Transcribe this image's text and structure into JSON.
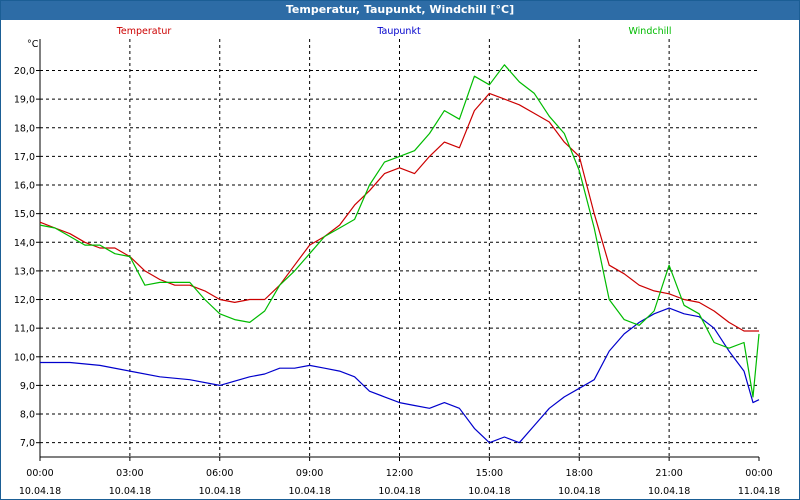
{
  "window": {
    "title": "Temperatur, Taupunkt, Windchill [°C]"
  },
  "chart_data": {
    "type": "line",
    "title": "Temperatur, Taupunkt, Windchill [°C]",
    "ylabel": "°C",
    "xlabel": "",
    "ylim": [
      6.5,
      21.1
    ],
    "xlim": [
      0,
      24
    ],
    "grid": true,
    "legend_position": "top",
    "y_ticks": [
      "7,0",
      "8,0",
      "9,0",
      "10,0",
      "11,0",
      "12,0",
      "13,0",
      "14,0",
      "15,0",
      "16,0",
      "17,0",
      "18,0",
      "19,0",
      "20,0"
    ],
    "y_tick_values": [
      7,
      8,
      9,
      10,
      11,
      12,
      13,
      14,
      15,
      16,
      17,
      18,
      19,
      20
    ],
    "x_ticks": [
      {
        "time": "00:00",
        "date": "10.04.18",
        "hour": 0
      },
      {
        "time": "03:00",
        "date": "10.04.18",
        "hour": 3
      },
      {
        "time": "06:00",
        "date": "10.04.18",
        "hour": 6
      },
      {
        "time": "09:00",
        "date": "10.04.18",
        "hour": 9
      },
      {
        "time": "12:00",
        "date": "10.04.18",
        "hour": 12
      },
      {
        "time": "15:00",
        "date": "10.04.18",
        "hour": 15
      },
      {
        "time": "18:00",
        "date": "10.04.18",
        "hour": 18
      },
      {
        "time": "21:00",
        "date": "10.04.18",
        "hour": 21
      },
      {
        "time": "00:00",
        "date": "11.04.18",
        "hour": 24
      }
    ],
    "series": [
      {
        "name": "Temperatur",
        "color": "#cc0000",
        "points": [
          [
            0,
            14.7
          ],
          [
            0.5,
            14.5
          ],
          [
            1,
            14.3
          ],
          [
            1.5,
            14.0
          ],
          [
            2,
            13.8
          ],
          [
            2.5,
            13.8
          ],
          [
            3,
            13.5
          ],
          [
            3.5,
            13.0
          ],
          [
            4,
            12.7
          ],
          [
            4.5,
            12.5
          ],
          [
            5,
            12.5
          ],
          [
            5.5,
            12.3
          ],
          [
            6,
            12.0
          ],
          [
            6.5,
            11.9
          ],
          [
            7,
            12.0
          ],
          [
            7.5,
            12.0
          ],
          [
            8,
            12.5
          ],
          [
            8.5,
            13.2
          ],
          [
            9,
            13.9
          ],
          [
            9.5,
            14.2
          ],
          [
            10,
            14.6
          ],
          [
            10.5,
            15.3
          ],
          [
            11,
            15.8
          ],
          [
            11.5,
            16.4
          ],
          [
            12,
            16.6
          ],
          [
            12.5,
            16.4
          ],
          [
            13,
            17.0
          ],
          [
            13.5,
            17.5
          ],
          [
            14,
            17.3
          ],
          [
            14.5,
            18.6
          ],
          [
            15,
            19.2
          ],
          [
            15.5,
            19.0
          ],
          [
            16,
            18.8
          ],
          [
            16.5,
            18.5
          ],
          [
            17,
            18.2
          ],
          [
            17.5,
            17.5
          ],
          [
            18,
            17.0
          ],
          [
            18.5,
            15.0
          ],
          [
            19,
            13.2
          ],
          [
            19.5,
            12.9
          ],
          [
            20,
            12.5
          ],
          [
            20.5,
            12.3
          ],
          [
            21,
            12.2
          ],
          [
            21.5,
            12.0
          ],
          [
            22,
            11.9
          ],
          [
            22.5,
            11.6
          ],
          [
            23,
            11.2
          ],
          [
            23.5,
            10.9
          ],
          [
            24,
            10.9
          ]
        ]
      },
      {
        "name": "Taupunkt",
        "color": "#0000cc",
        "points": [
          [
            0,
            9.8
          ],
          [
            1,
            9.8
          ],
          [
            2,
            9.7
          ],
          [
            3,
            9.5
          ],
          [
            4,
            9.3
          ],
          [
            5,
            9.2
          ],
          [
            6,
            9.0
          ],
          [
            7,
            9.3
          ],
          [
            7.5,
            9.4
          ],
          [
            8,
            9.6
          ],
          [
            8.5,
            9.6
          ],
          [
            9,
            9.7
          ],
          [
            9.5,
            9.6
          ],
          [
            10,
            9.5
          ],
          [
            10.5,
            9.3
          ],
          [
            11,
            8.8
          ],
          [
            11.5,
            8.6
          ],
          [
            12,
            8.4
          ],
          [
            12.5,
            8.3
          ],
          [
            13,
            8.2
          ],
          [
            13.5,
            8.4
          ],
          [
            14,
            8.2
          ],
          [
            14.5,
            7.5
          ],
          [
            15,
            7.0
          ],
          [
            15.5,
            7.2
          ],
          [
            16,
            7.0
          ],
          [
            16.5,
            7.6
          ],
          [
            17,
            8.2
          ],
          [
            17.5,
            8.6
          ],
          [
            18,
            8.9
          ],
          [
            18.5,
            9.2
          ],
          [
            19,
            10.2
          ],
          [
            19.5,
            10.8
          ],
          [
            20,
            11.2
          ],
          [
            20.5,
            11.5
          ],
          [
            21,
            11.7
          ],
          [
            21.5,
            11.5
          ],
          [
            22,
            11.4
          ],
          [
            22.5,
            11.0
          ],
          [
            23,
            10.2
          ],
          [
            23.5,
            9.5
          ],
          [
            23.8,
            8.4
          ],
          [
            24,
            8.5
          ]
        ]
      },
      {
        "name": "Windchill",
        "color": "#00bb00",
        "points": [
          [
            0,
            14.6
          ],
          [
            0.5,
            14.5
          ],
          [
            1,
            14.2
          ],
          [
            1.5,
            13.9
          ],
          [
            2,
            13.9
          ],
          [
            2.5,
            13.6
          ],
          [
            3,
            13.5
          ],
          [
            3.5,
            12.5
          ],
          [
            4,
            12.6
          ],
          [
            4.5,
            12.6
          ],
          [
            5,
            12.6
          ],
          [
            5.5,
            12.0
          ],
          [
            6,
            11.5
          ],
          [
            6.5,
            11.3
          ],
          [
            7,
            11.2
          ],
          [
            7.5,
            11.6
          ],
          [
            8,
            12.5
          ],
          [
            8.5,
            13.0
          ],
          [
            9,
            13.6
          ],
          [
            9.5,
            14.2
          ],
          [
            10,
            14.5
          ],
          [
            10.5,
            14.8
          ],
          [
            11,
            16.0
          ],
          [
            11.5,
            16.8
          ],
          [
            12,
            17.0
          ],
          [
            12.5,
            17.2
          ],
          [
            13,
            17.8
          ],
          [
            13.5,
            18.6
          ],
          [
            14,
            18.3
          ],
          [
            14.5,
            19.8
          ],
          [
            15,
            19.5
          ],
          [
            15.5,
            20.2
          ],
          [
            16,
            19.6
          ],
          [
            16.5,
            19.2
          ],
          [
            17,
            18.4
          ],
          [
            17.5,
            17.8
          ],
          [
            18,
            16.5
          ],
          [
            18.5,
            14.5
          ],
          [
            19,
            12.0
          ],
          [
            19.5,
            11.3
          ],
          [
            20,
            11.1
          ],
          [
            20.5,
            11.6
          ],
          [
            21,
            13.2
          ],
          [
            21.5,
            11.8
          ],
          [
            22,
            11.5
          ],
          [
            22.5,
            10.5
          ],
          [
            23,
            10.3
          ],
          [
            23.5,
            10.5
          ],
          [
            23.8,
            8.6
          ],
          [
            24,
            10.8
          ]
        ]
      }
    ]
  }
}
